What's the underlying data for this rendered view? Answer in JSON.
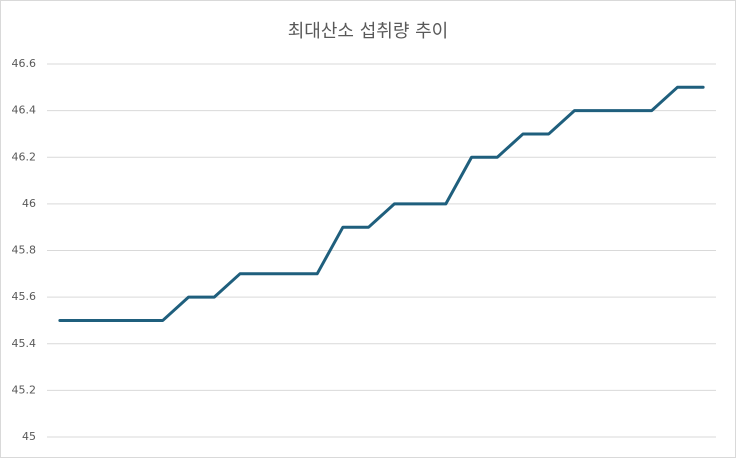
{
  "chart_data": {
    "type": "line",
    "title": "최대산소 섭취량 추이",
    "categories": [
      null,
      null,
      null,
      null,
      null,
      null,
      null,
      null,
      null,
      null,
      null,
      null,
      null,
      null,
      null,
      null,
      null,
      null,
      null,
      null,
      null,
      null,
      null,
      null,
      null,
      null
    ],
    "values": [
      45.5,
      45.5,
      45.5,
      45.5,
      45.5,
      45.6,
      45.6,
      45.7,
      45.7,
      45.7,
      45.7,
      45.9,
      45.9,
      46.0,
      46.0,
      46.0,
      46.2,
      46.2,
      46.3,
      46.3,
      46.4,
      46.4,
      46.4,
      46.4,
      46.5,
      46.5
    ],
    "color": "#1f5f7d",
    "ylim": [
      45,
      46.6
    ],
    "yticks": [
      45,
      45.2,
      45.4,
      45.6,
      45.8,
      46,
      46.2,
      46.4,
      46.6
    ],
    "grid": true
  }
}
